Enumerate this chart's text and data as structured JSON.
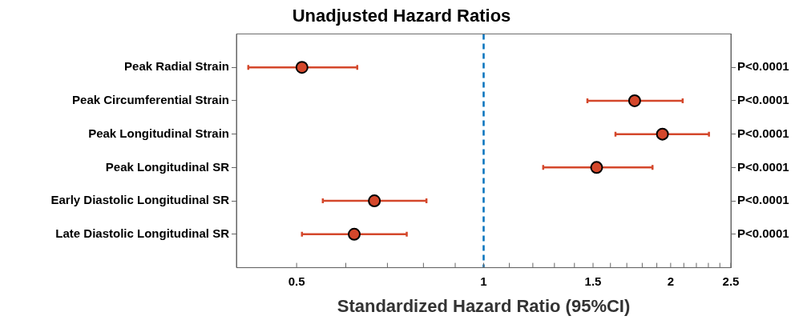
{
  "chart_data": {
    "type": "scatter",
    "title": "Unadjusted Hazard Ratios",
    "xlabel": "Standardized Hazard Ratio (95%CI)",
    "orientation": "horizontal",
    "log": "x",
    "categories": [
      "Peak Radial Strain",
      "Peak Circumferential Strain",
      "Peak Longitudinal Strain",
      "Peak Longitudinal SR",
      "Early Diastolic Longitudinal SR",
      "Late Diastolic Longitudinal SR"
    ],
    "series": [
      {
        "color": "#d4472b",
        "values": [
          0.51,
          1.75,
          1.94,
          1.52,
          0.667,
          0.619
        ],
        "errors": [
          [
            0.418,
            0.626
          ],
          [
            1.469,
            2.091
          ],
          [
            1.63,
            2.305
          ],
          [
            1.247,
            1.87
          ],
          [
            0.551,
            0.809
          ],
          [
            0.51,
            0.752
          ]
        ]
      }
    ],
    "xlim": [
      0.4,
      2.5
    ],
    "xticks": [
      0.5,
      {
        "value": 0.6,
        "label": null
      },
      {
        "value": 0.7,
        "label": null
      },
      {
        "value": 0.8,
        "label": null
      },
      {
        "value": 0.9,
        "label": null
      },
      1,
      {
        "value": 1.1,
        "label": null
      },
      {
        "value": 1.2,
        "label": null
      },
      {
        "value": 1.3,
        "label": null
      },
      {
        "value": 1.4,
        "label": null
      },
      1.5,
      {
        "value": 1.6,
        "label": null
      },
      {
        "value": 1.7,
        "label": null
      },
      {
        "value": 1.8,
        "label": null
      },
      {
        "value": 1.9,
        "label": null
      },
      2,
      {
        "value": 2.1,
        "label": null
      },
      {
        "value": 2.2,
        "label": null
      },
      {
        "value": 2.3,
        "label": null
      },
      {
        "value": 2.4,
        "label": null
      },
      2.5
    ],
    "ref_lines": [
      {
        "axis": "x",
        "value": 1,
        "color": "#0072bd",
        "line_style": "dashed"
      }
    ],
    "annotations": [
      "P<0.0001",
      "P<0.0001",
      "P<0.0001",
      "P<0.0001",
      "P<0.0001",
      "P<0.0001"
    ],
    "marker": "circle",
    "grid": false,
    "legend": false
  }
}
